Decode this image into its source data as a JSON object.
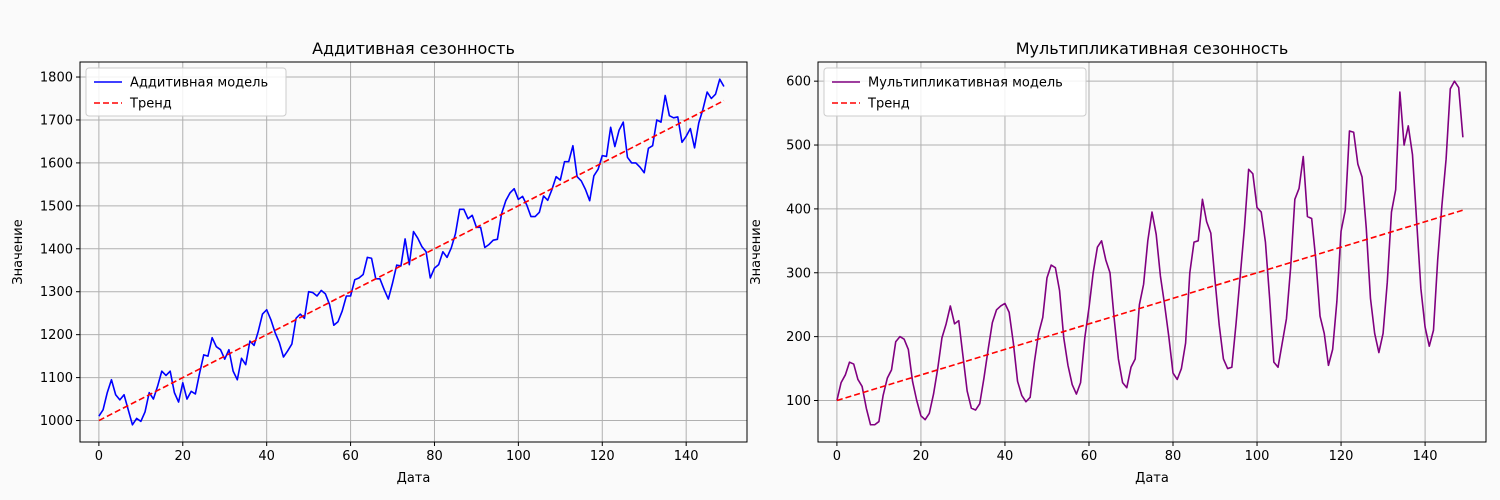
{
  "chart_data": [
    {
      "type": "line",
      "title": "Аддитивная сезонность",
      "xlabel": "Дата",
      "ylabel": "Значение",
      "xlim": [
        -4.5,
        154.5
      ],
      "ylim": [
        950,
        1835
      ],
      "xticks": [
        0,
        20,
        40,
        60,
        80,
        100,
        120,
        140
      ],
      "yticks": [
        1000,
        1100,
        1200,
        1300,
        1400,
        1500,
        1600,
        1700,
        1800
      ],
      "grid": true,
      "legend_position": "top-left",
      "series": [
        {
          "name": "Аддитивная модель",
          "color": "#0000ff",
          "style": "solid",
          "x": [
            0,
            1,
            2,
            3,
            4,
            5,
            6,
            7,
            8,
            9,
            10,
            11,
            12,
            13,
            14,
            15,
            16,
            17,
            18,
            19,
            20,
            21,
            22,
            23,
            24,
            25,
            26,
            27,
            28,
            29,
            30,
            31,
            32,
            33,
            34,
            35,
            36,
            37,
            38,
            39,
            40,
            41,
            42,
            43,
            44,
            45,
            46,
            47,
            48,
            49,
            50,
            51,
            52,
            53,
            54,
            55,
            56,
            57,
            58,
            59,
            60,
            61,
            62,
            63,
            64,
            65,
            66,
            67,
            68,
            69,
            70,
            71,
            72,
            73,
            74,
            75,
            76,
            77,
            78,
            79,
            80,
            81,
            82,
            83,
            84,
            85,
            86,
            87,
            88,
            89,
            90,
            91,
            92,
            93,
            94,
            95,
            96,
            97,
            98,
            99,
            100,
            101,
            102,
            103,
            104,
            105,
            106,
            107,
            108,
            109,
            110,
            111,
            112,
            113,
            114,
            115,
            116,
            117,
            118,
            119,
            120,
            121,
            122,
            123,
            124,
            125,
            126,
            127,
            128,
            129,
            130,
            131,
            132,
            133,
            134,
            135,
            136,
            137,
            138,
            139,
            140,
            141,
            142,
            143,
            144,
            145,
            146,
            147,
            148,
            149
          ],
          "y": [
            1010,
            1025,
            1065,
            1095,
            1060,
            1048,
            1060,
            1025,
            990,
            1005,
            998,
            1020,
            1065,
            1050,
            1080,
            1115,
            1105,
            1115,
            1065,
            1043,
            1088,
            1050,
            1068,
            1062,
            1110,
            1153,
            1150,
            1193,
            1172,
            1165,
            1143,
            1165,
            1115,
            1095,
            1145,
            1130,
            1185,
            1175,
            1208,
            1248,
            1258,
            1235,
            1205,
            1182,
            1148,
            1162,
            1178,
            1238,
            1248,
            1238,
            1300,
            1298,
            1290,
            1303,
            1295,
            1270,
            1222,
            1230,
            1255,
            1290,
            1290,
            1328,
            1332,
            1340,
            1380,
            1378,
            1330,
            1330,
            1305,
            1283,
            1320,
            1362,
            1360,
            1423,
            1363,
            1440,
            1425,
            1405,
            1393,
            1332,
            1355,
            1363,
            1393,
            1380,
            1402,
            1435,
            1492,
            1492,
            1470,
            1478,
            1450,
            1450,
            1403,
            1410,
            1420,
            1422,
            1482,
            1512,
            1530,
            1540,
            1515,
            1522,
            1502,
            1475,
            1475,
            1485,
            1523,
            1513,
            1538,
            1568,
            1560,
            1603,
            1603,
            1640,
            1568,
            1558,
            1538,
            1512,
            1570,
            1585,
            1617,
            1615,
            1683,
            1638,
            1676,
            1695,
            1613,
            1600,
            1600,
            1590,
            1577,
            1634,
            1640,
            1700,
            1695,
            1757,
            1710,
            1705,
            1707,
            1648,
            1662,
            1680,
            1635,
            1693,
            1725,
            1765,
            1750,
            1760,
            1795,
            1778
          ]
        },
        {
          "name": "Тренд",
          "color": "#ff0000",
          "style": "dashed",
          "x": [
            0,
            149
          ],
          "y": [
            1000,
            1745
          ]
        }
      ]
    },
    {
      "type": "line",
      "title": "Мультипликативная сезонность",
      "xlabel": "Дата",
      "ylabel": "Значение",
      "xlim": [
        -4.5,
        154.5
      ],
      "ylim": [
        35,
        630
      ],
      "xticks": [
        0,
        20,
        40,
        60,
        80,
        100,
        120,
        140
      ],
      "yticks": [
        100,
        200,
        300,
        400,
        500,
        600
      ],
      "grid": true,
      "legend_position": "top-left",
      "series": [
        {
          "name": "Мультипликативная модель",
          "color": "#800080",
          "style": "solid",
          "x": [
            0,
            1,
            2,
            3,
            4,
            5,
            6,
            7,
            8,
            9,
            10,
            11,
            12,
            13,
            14,
            15,
            16,
            17,
            18,
            19,
            20,
            21,
            22,
            23,
            24,
            25,
            26,
            27,
            28,
            29,
            30,
            31,
            32,
            33,
            34,
            35,
            36,
            37,
            38,
            39,
            40,
            41,
            42,
            43,
            44,
            45,
            46,
            47,
            48,
            49,
            50,
            51,
            52,
            53,
            54,
            55,
            56,
            57,
            58,
            59,
            60,
            61,
            62,
            63,
            64,
            65,
            66,
            67,
            68,
            69,
            70,
            71,
            72,
            73,
            74,
            75,
            76,
            77,
            78,
            79,
            80,
            81,
            82,
            83,
            84,
            85,
            86,
            87,
            88,
            89,
            90,
            91,
            92,
            93,
            94,
            95,
            96,
            97,
            98,
            99,
            100,
            101,
            102,
            103,
            104,
            105,
            106,
            107,
            108,
            109,
            110,
            111,
            112,
            113,
            114,
            115,
            116,
            117,
            118,
            119,
            120,
            121,
            122,
            123,
            124,
            125,
            126,
            127,
            128,
            129,
            130,
            131,
            132,
            133,
            134,
            135,
            136,
            137,
            138,
            139,
            140,
            141,
            142,
            143,
            144,
            145,
            146,
            147,
            148,
            149
          ],
          "y": [
            100,
            128,
            140,
            160,
            157,
            133,
            122,
            88,
            62,
            62,
            67,
            108,
            135,
            148,
            192,
            200,
            196,
            180,
            130,
            100,
            76,
            70,
            80,
            110,
            150,
            198,
            220,
            248,
            220,
            225,
            170,
            115,
            88,
            85,
            95,
            135,
            180,
            222,
            242,
            248,
            252,
            238,
            190,
            130,
            108,
            98,
            105,
            160,
            205,
            230,
            292,
            312,
            308,
            272,
            198,
            155,
            125,
            110,
            128,
            198,
            245,
            300,
            340,
            350,
            320,
            300,
            228,
            165,
            128,
            120,
            152,
            165,
            250,
            282,
            350,
            395,
            360,
            295,
            250,
            200,
            143,
            133,
            150,
            190,
            300,
            348,
            350,
            415,
            380,
            362,
            288,
            218,
            165,
            150,
            152,
            220,
            295,
            370,
            462,
            455,
            402,
            395,
            348,
            260,
            160,
            152,
            190,
            228,
            308,
            415,
            432,
            482,
            388,
            385,
            320,
            232,
            205,
            155,
            180,
            255,
            365,
            398,
            522,
            520,
            470,
            450,
            370,
            260,
            205,
            175,
            205,
            285,
            395,
            430,
            583,
            500,
            530,
            485,
            380,
            275,
            215,
            185,
            210,
            320,
            405,
            478,
            588,
            600,
            590,
            512
          ]
        },
        {
          "name": "Тренд",
          "color": "#ff0000",
          "style": "dashed",
          "x": [
            0,
            149
          ],
          "y": [
            100,
            398
          ]
        }
      ]
    }
  ]
}
